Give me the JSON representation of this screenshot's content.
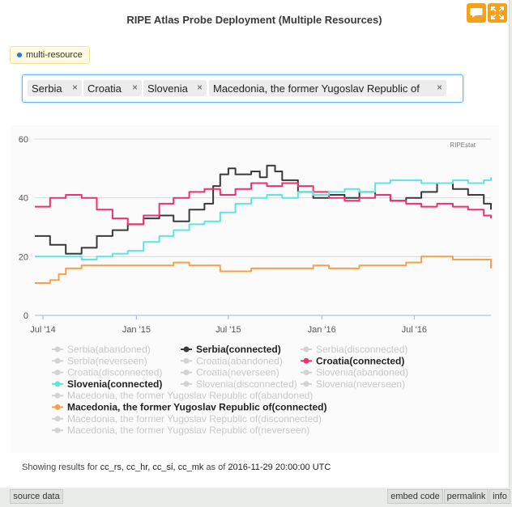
{
  "title": "RIPE Atlas Probe Deployment (Multiple Resources)",
  "pill_label": "multi-resource",
  "tags": [
    "Serbia",
    "Croatia",
    "Slovenia",
    "Macedonia, the former Yugoslav Republic of"
  ],
  "tag_remove_glyph": "×",
  "watermark": "RIPEstat",
  "footer": {
    "prefix": "Showing results for ",
    "resources": "cc_rs, cc_hr, cc_si, cc_mk",
    "middle": " as of ",
    "timestamp": "2016-11-29 20:00:00 UTC"
  },
  "bottom_bar": {
    "source_data": "source data",
    "embed_code": "embed code",
    "permalink": "permalink",
    "info": "info"
  },
  "icons": {
    "chat": "speech-bubble-icon",
    "expand": "expand-icon"
  },
  "colors": {
    "accent": "#f6a11a",
    "serbia": "#3a3a3a",
    "croatia": "#f0306e",
    "slovenia": "#5fe6dc",
    "macedonia": "#f7a04a",
    "inactive": "#d3d3d3"
  },
  "chart_data": {
    "type": "line",
    "x_tick_labels": [
      "Jul '14",
      "Jan '15",
      "Jul '15",
      "Jan '16",
      "Jul '16"
    ],
    "ylim": [
      0,
      60
    ],
    "y_ticks": [
      0,
      20,
      40,
      60
    ],
    "grid": true,
    "legend_position": "bottom",
    "series": [
      {
        "name": "Serbia(connected)",
        "color": "#3a3a3a",
        "x": [
          "2014-06-15",
          "2014-07-15",
          "2014-08-15",
          "2014-09-15",
          "2014-10-15",
          "2014-11-15",
          "2014-12-15",
          "2015-01-15",
          "2015-02-15",
          "2015-03-15",
          "2015-04-15",
          "2015-05-15",
          "2015-06-01",
          "2015-06-15",
          "2015-07-01",
          "2015-07-15",
          "2015-08-15",
          "2015-09-01",
          "2015-09-15",
          "2015-10-01",
          "2015-10-15",
          "2015-11-15",
          "2015-12-15",
          "2016-01-15",
          "2016-02-15",
          "2016-03-15",
          "2016-04-15",
          "2016-05-15",
          "2016-06-15",
          "2016-07-15",
          "2016-08-15",
          "2016-09-15",
          "2016-10-15",
          "2016-11-15",
          "2016-11-29"
        ],
        "y": [
          27,
          24,
          21,
          23,
          27,
          29,
          31,
          33,
          34,
          32,
          36,
          38,
          44,
          48,
          50,
          48,
          49,
          47,
          51,
          49,
          46,
          42,
          40,
          41,
          40,
          42,
          41,
          39,
          40,
          42,
          45,
          43,
          41,
          38,
          36
        ]
      },
      {
        "name": "Croatia(connected)",
        "color": "#f0306e",
        "x": [
          "2014-06-15",
          "2014-07-15",
          "2014-08-15",
          "2014-09-15",
          "2014-10-15",
          "2014-11-15",
          "2014-12-15",
          "2015-01-15",
          "2015-02-15",
          "2015-03-15",
          "2015-04-15",
          "2015-05-15",
          "2015-06-15",
          "2015-07-15",
          "2015-08-15",
          "2015-09-15",
          "2015-10-15",
          "2015-11-15",
          "2015-12-15",
          "2016-01-15",
          "2016-02-15",
          "2016-03-15",
          "2016-04-15",
          "2016-05-15",
          "2016-06-15",
          "2016-07-15",
          "2016-08-15",
          "2016-09-15",
          "2016-10-15",
          "2016-11-15",
          "2016-11-29"
        ],
        "y": [
          37,
          40,
          41,
          40,
          36,
          33,
          31,
          34,
          38,
          40,
          42,
          43,
          41,
          43,
          45,
          44,
          45,
          44,
          42,
          40,
          39,
          40,
          41,
          39,
          38,
          37,
          38,
          37,
          36,
          34,
          33
        ]
      },
      {
        "name": "Slovenia(connected)",
        "color": "#5fe6dc",
        "x": [
          "2014-06-15",
          "2014-07-15",
          "2014-08-15",
          "2014-09-15",
          "2014-10-15",
          "2014-11-15",
          "2014-12-15",
          "2015-01-15",
          "2015-02-15",
          "2015-03-15",
          "2015-04-15",
          "2015-05-15",
          "2015-06-15",
          "2015-07-15",
          "2015-08-15",
          "2015-09-15",
          "2015-10-15",
          "2015-11-15",
          "2015-12-15",
          "2016-01-15",
          "2016-02-15",
          "2016-03-15",
          "2016-04-15",
          "2016-05-15",
          "2016-06-15",
          "2016-07-15",
          "2016-08-15",
          "2016-09-15",
          "2016-10-15",
          "2016-11-15",
          "2016-11-29"
        ],
        "y": [
          20,
          20,
          20,
          19,
          20,
          21,
          22,
          25,
          27,
          29,
          31,
          32,
          35,
          38,
          40,
          41,
          40,
          42,
          41,
          42,
          43,
          42,
          45,
          46,
          46,
          45,
          45,
          46,
          45,
          46,
          47
        ]
      },
      {
        "name": "Macedonia, the former Yugoslav Republic of(connected)",
        "color": "#f7a04a",
        "x": [
          "2014-06-15",
          "2014-07-01",
          "2014-07-15",
          "2014-08-01",
          "2014-08-15",
          "2014-09-15",
          "2014-10-15",
          "2014-11-15",
          "2014-12-15",
          "2015-01-15",
          "2015-02-15",
          "2015-03-15",
          "2015-04-15",
          "2015-05-15",
          "2015-06-15",
          "2015-07-15",
          "2015-08-15",
          "2015-09-15",
          "2015-10-15",
          "2015-11-15",
          "2015-12-15",
          "2016-01-15",
          "2016-02-15",
          "2016-03-15",
          "2016-04-15",
          "2016-05-15",
          "2016-06-15",
          "2016-07-01",
          "2016-07-15",
          "2016-08-15",
          "2016-09-15",
          "2016-10-15",
          "2016-11-15",
          "2016-11-29"
        ],
        "y": [
          11,
          11,
          12,
          14,
          16,
          17,
          17,
          17,
          17,
          17,
          17,
          18,
          17,
          17,
          15,
          15,
          16,
          16,
          16,
          16,
          17,
          16,
          16,
          17,
          17,
          17,
          18,
          18,
          20,
          20,
          19,
          19,
          19,
          16
        ]
      }
    ],
    "legend": [
      [
        "Serbia(abandoned)",
        "Serbia(connected)",
        "Serbia(disconnected)"
      ],
      [
        "Serbia(neverseen)",
        "Croatia(abandoned)",
        "Croatia(connected)"
      ],
      [
        "Croatia(disconnected)",
        "Croatia(neverseen)",
        "Slovenia(abandoned)"
      ],
      [
        "Slovenia(connected)",
        "Slovenia(disconnected)",
        "Slovenia(neverseen)"
      ],
      [
        "Macedonia, the former Yugoslav Republic of(abandoned)"
      ],
      [
        "Macedonia, the former Yugoslav Republic of(connected)"
      ],
      [
        "Macedonia, the former Yugoslav Republic of(disconnected)"
      ],
      [
        "Macedonia, the former Yugoslav Republic of(neverseen)"
      ]
    ],
    "active_series": [
      "Serbia(connected)",
      "Croatia(connected)",
      "Slovenia(connected)",
      "Macedonia, the former Yugoslav Republic of(connected)"
    ]
  }
}
